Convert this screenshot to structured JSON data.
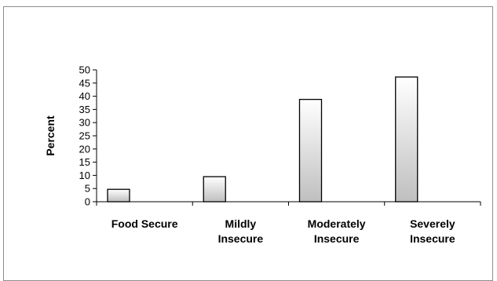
{
  "chart_data": {
    "type": "bar",
    "title": "",
    "xlabel": "",
    "ylabel": "Percent",
    "categories": [
      "Food Secure",
      "Mildly Insecure",
      "Moderately Insecure",
      "Severely Insecure"
    ],
    "category_lines": [
      [
        "Food Secure"
      ],
      [
        "Mildly",
        "Insecure"
      ],
      [
        "Moderately",
        "Insecure"
      ],
      [
        "Severely",
        "Insecure"
      ]
    ],
    "values": [
      4.7,
      9.5,
      38.8,
      47.3
    ],
    "ylim": [
      0,
      50
    ],
    "yticks": [
      0,
      5,
      10,
      15,
      20,
      25,
      30,
      35,
      40,
      45,
      50
    ],
    "grid": false,
    "legend": "none",
    "bar_fill_top": "#ffffff",
    "bar_fill_bottom": "#bfbfbf",
    "bar_stroke": "#000000"
  }
}
